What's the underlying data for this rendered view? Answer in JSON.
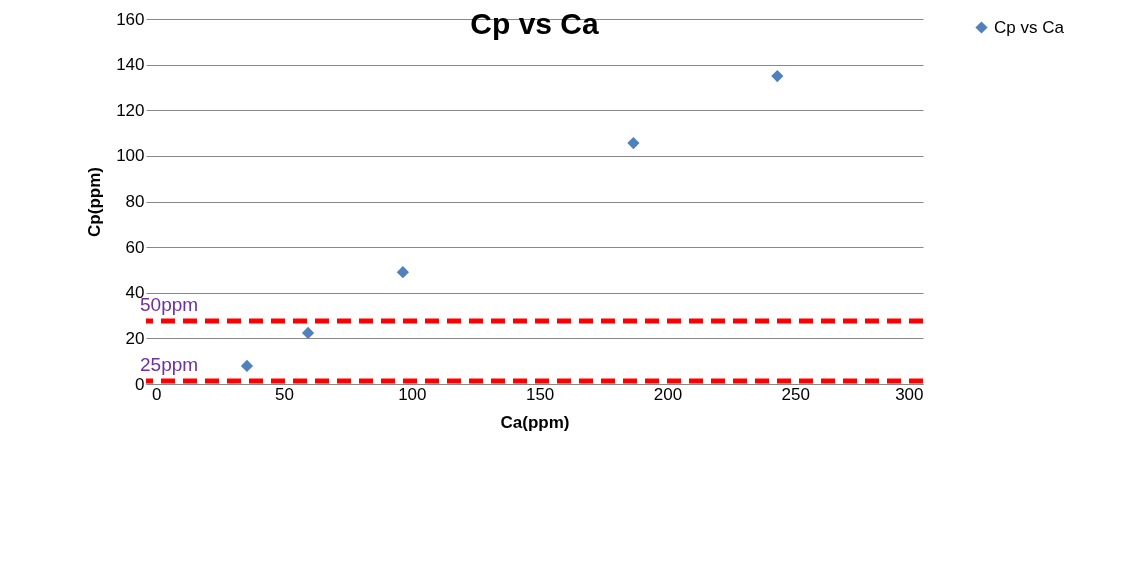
{
  "chart_data": {
    "type": "scatter",
    "title": "Cp vs Ca",
    "xlabel": "Ca(ppm)",
    "ylabel": "Cp(ppm)",
    "x": [
      35.5,
      59.4,
      96.5,
      186.7,
      243
    ],
    "series": [
      {
        "name": "Cp vs Ca",
        "color": "#4f81bd",
        "values": [
          7.9,
          22.4,
          49,
          105.6,
          135
        ]
      }
    ],
    "xlim": [
      -4,
      300
    ],
    "xticks": [
      0,
      50,
      100,
      150,
      200,
      250,
      300
    ],
    "ylim": [
      0,
      160
    ],
    "yticks": [
      0,
      20,
      40,
      60,
      80,
      100,
      120,
      140,
      160
    ],
    "ref_lines": [
      {
        "axis": "y",
        "value": 27.6,
        "label": "50ppm",
        "color": "#ff0000",
        "line_style": "dashed"
      },
      {
        "axis": "y",
        "value": 1.3,
        "label": "25ppm",
        "color": "#ff0000",
        "line_style": "dashed"
      }
    ],
    "grid": "y",
    "legend": "right",
    "marker": "diamond"
  }
}
